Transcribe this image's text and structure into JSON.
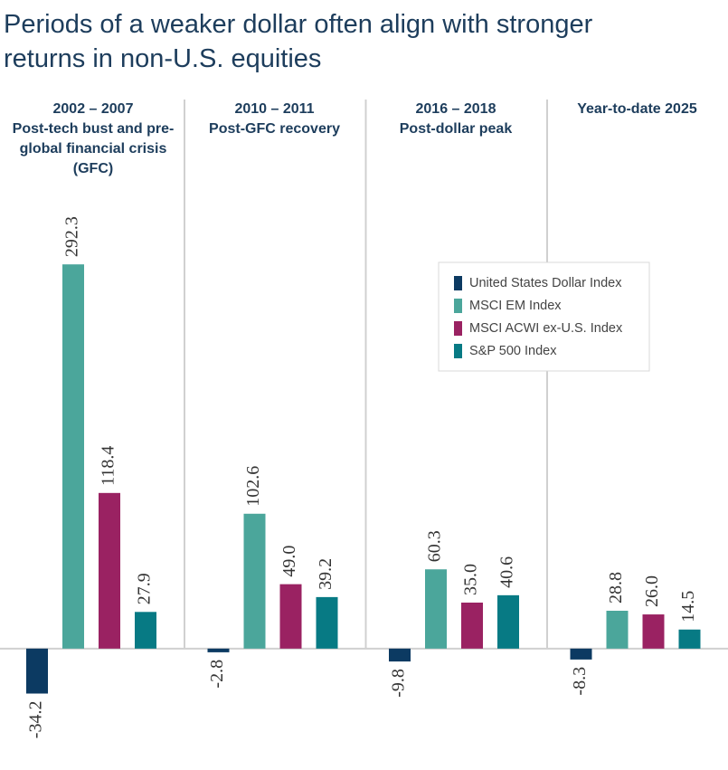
{
  "chart_data": {
    "type": "bar",
    "title": "Periods of a weaker dollar often align with stronger returns in non-U.S. equities",
    "categories": [
      "2002 – 2007",
      "2010 – 2011",
      "2016 – 2018",
      "Year-to-date 2025"
    ],
    "category_subtitles": [
      "Post-tech bust and pre-global financial crisis (GFC)",
      "Post-GFC recovery",
      "Post-dollar peak",
      null
    ],
    "series": [
      {
        "name": "United States Dollar Index",
        "color": "#0c3a62",
        "values": [
          -34.2,
          -2.8,
          -9.8,
          -8.3
        ],
        "value_labels": [
          "-34.2",
          "-2.8",
          "-9.8",
          "-8.3"
        ]
      },
      {
        "name": "MSCI EM Index",
        "color": "#4ba69b",
        "values": [
          292.3,
          102.6,
          60.3,
          28.8
        ],
        "value_labels": [
          "292.3",
          "102.6",
          "60.3",
          "28.8"
        ]
      },
      {
        "name": "MSCI ACWI ex-U.S. Index",
        "color": "#9a2262",
        "values": [
          118.4,
          49.0,
          35.0,
          26.0
        ],
        "value_labels": [
          "118.4",
          "49.0",
          "35.0",
          "26.0"
        ]
      },
      {
        "name": "S&P 500 Index",
        "color": "#077a84",
        "values": [
          27.9,
          39.2,
          40.6,
          14.5
        ],
        "value_labels": [
          "27.9",
          "39.2",
          "40.6",
          "14.5"
        ]
      }
    ],
    "ylim": [
      -60,
      300
    ]
  }
}
